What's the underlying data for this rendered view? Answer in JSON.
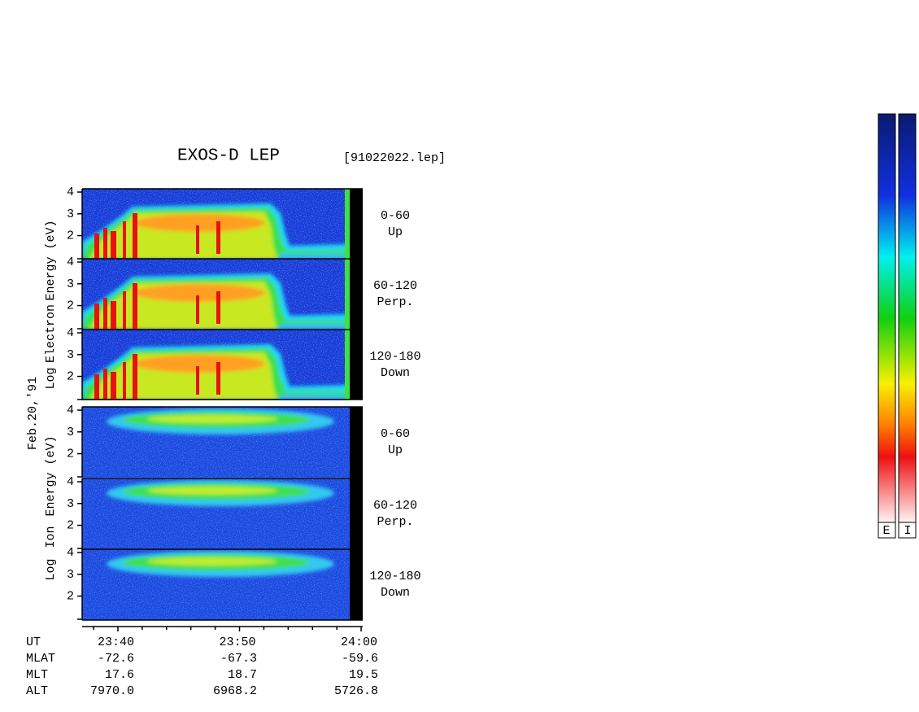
{
  "header": {
    "title": "EXOS-D LEP",
    "file": "[91022022.lep]"
  },
  "chart_data": {
    "type": "spectrogram",
    "date_label": "Feb.20,'91",
    "species": [
      {
        "words": [
          "Log",
          "Electron",
          "Energy (eV)"
        ]
      },
      {
        "words": [
          "Log",
          "Ion",
          "Energy (eV)"
        ]
      }
    ],
    "panels": [
      {
        "pitch_angle": "0-60",
        "direction": "Up"
      },
      {
        "pitch_angle": "60-120",
        "direction": "Perp."
      },
      {
        "pitch_angle": "120-180",
        "direction": "Down"
      },
      {
        "pitch_angle": "0-60",
        "direction": "Up"
      },
      {
        "pitch_angle": "60-120",
        "direction": "Perp."
      },
      {
        "pitch_angle": "120-180",
        "direction": "Down"
      }
    ],
    "ylim": [
      0.9,
      4.15
    ],
    "yticks": [
      2,
      3,
      4
    ],
    "xlim": [
      1417.06,
      1440.13
    ],
    "xticks": [
      {
        "value": 1420,
        "label": "23:40"
      },
      {
        "value": 1430,
        "label": "23:50"
      },
      {
        "value": 1440,
        "label": "24:00"
      }
    ],
    "xminorticks": [
      1418,
      1422,
      1424,
      1426,
      1428,
      1432,
      1434,
      1436,
      1438
    ],
    "colorbars": [
      "E",
      "I"
    ]
  },
  "orbit_table": {
    "time_label": "UT",
    "rows": [
      [
        "MLAT",
        "-72.6",
        "-67.3",
        "-59.6"
      ],
      [
        "MLT",
        "17.6",
        "18.7",
        "19.5"
      ],
      [
        "ALT",
        "7970.0",
        "6968.2",
        "5726.8"
      ]
    ]
  }
}
